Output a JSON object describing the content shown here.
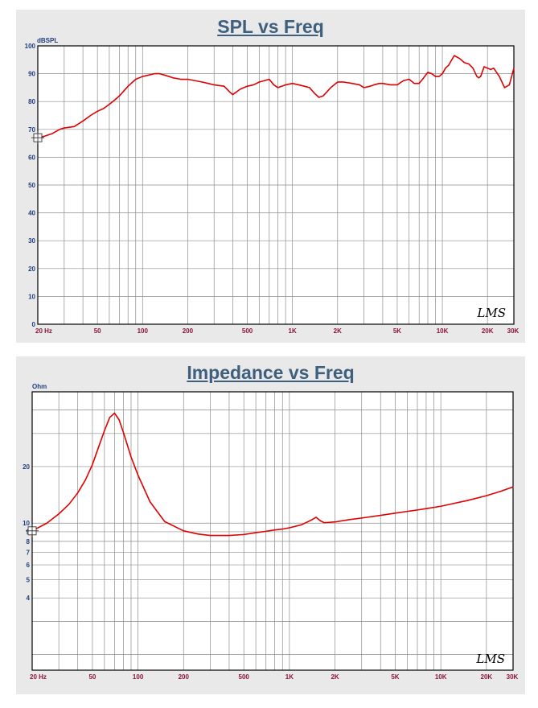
{
  "chart_data": [
    {
      "type": "line",
      "title": "SPL vs Freq",
      "ylabel": "dBSPL",
      "xlabel": "",
      "x_scale": "log",
      "xlim": [
        20,
        30000
      ],
      "ylim": [
        0,
        100
      ],
      "grid": true,
      "x_ticks": [
        {
          "v": 20,
          "label": "20  Hz"
        },
        {
          "v": 50,
          "label": "50"
        },
        {
          "v": 100,
          "label": "100"
        },
        {
          "v": 200,
          "label": "200"
        },
        {
          "v": 500,
          "label": "500"
        },
        {
          "v": 1000,
          "label": "1K"
        },
        {
          "v": 2000,
          "label": "2K"
        },
        {
          "v": 5000,
          "label": "5K"
        },
        {
          "v": 10000,
          "label": "10K"
        },
        {
          "v": 20000,
          "label": "20K"
        },
        {
          "v": 30000,
          "label": "30K"
        }
      ],
      "y_ticks": [
        {
          "v": 0,
          "label": "0"
        },
        {
          "v": 10,
          "label": "10"
        },
        {
          "v": 20,
          "label": "20"
        },
        {
          "v": 30,
          "label": "30"
        },
        {
          "v": 40,
          "label": "40"
        },
        {
          "v": 50,
          "label": "50"
        },
        {
          "v": 60,
          "label": "60"
        },
        {
          "v": 70,
          "label": "70"
        },
        {
          "v": 80,
          "label": "80"
        },
        {
          "v": 90,
          "label": "90"
        },
        {
          "v": 100,
          "label": "100"
        }
      ],
      "series": [
        {
          "color": "#e00000",
          "x": [
            20,
            22,
            25,
            28,
            30,
            35,
            40,
            45,
            50,
            55,
            60,
            65,
            70,
            80,
            90,
            100,
            110,
            120,
            130,
            140,
            150,
            160,
            180,
            200,
            250,
            300,
            350,
            380,
            400,
            450,
            500,
            550,
            600,
            650,
            700,
            750,
            800,
            850,
            900,
            1000,
            1100,
            1200,
            1300,
            1400,
            1500,
            1600,
            1700,
            1800,
            2000,
            2200,
            2500,
            2800,
            3000,
            3300,
            3500,
            3800,
            4000,
            4500,
            5000,
            5500,
            6000,
            6500,
            7000,
            7500,
            8000,
            8500,
            9000,
            9500,
            10000,
            10500,
            11000,
            12000,
            13000,
            14000,
            15000,
            16000,
            17000,
            17500,
            18000,
            19000,
            20000,
            21000,
            22000,
            24000,
            26000,
            28000,
            30000
          ],
          "y": [
            67,
            67.5,
            68.5,
            70,
            70.5,
            71,
            73,
            75,
            76.5,
            77.5,
            79,
            80.5,
            82,
            85.5,
            88,
            89,
            89.5,
            90,
            90,
            89.5,
            89,
            88.5,
            88,
            88,
            87,
            86,
            85.5,
            83.5,
            82.5,
            84.5,
            85.5,
            86,
            87,
            87.5,
            88,
            86,
            85,
            85.5,
            86,
            86.5,
            86,
            85.5,
            85,
            83,
            81.5,
            82,
            83.5,
            85,
            87,
            87,
            86.5,
            86,
            85,
            85.5,
            86,
            86.5,
            86.5,
            86,
            86,
            87.5,
            88,
            86.5,
            86.5,
            88.5,
            90.5,
            90,
            89,
            89,
            90,
            92,
            93,
            96.5,
            95.5,
            94,
            93.5,
            92,
            89,
            88.5,
            89,
            92.5,
            92,
            91.5,
            92,
            89,
            85,
            86,
            92
          ]
        }
      ]
    },
    {
      "type": "line",
      "title": "Impedance vs Freq",
      "ylabel": "Ohm",
      "xlabel": "",
      "x_scale": "log",
      "y_scale": "log",
      "xlim": [
        20,
        30000
      ],
      "ylim": [
        1.65,
        50
      ],
      "grid": true,
      "x_ticks": [
        {
          "v": 20,
          "label": "20  Hz"
        },
        {
          "v": 50,
          "label": "50"
        },
        {
          "v": 100,
          "label": "100"
        },
        {
          "v": 200,
          "label": "200"
        },
        {
          "v": 500,
          "label": "500"
        },
        {
          "v": 1000,
          "label": "1K"
        },
        {
          "v": 2000,
          "label": "2K"
        },
        {
          "v": 5000,
          "label": "5K"
        },
        {
          "v": 10000,
          "label": "10K"
        },
        {
          "v": 20000,
          "label": "20K"
        },
        {
          "v": 30000,
          "label": "30K"
        }
      ],
      "y_ticks": [
        {
          "v": 4,
          "label": "4"
        },
        {
          "v": 5,
          "label": "5"
        },
        {
          "v": 6,
          "label": "6"
        },
        {
          "v": 7,
          "label": "7"
        },
        {
          "v": 8,
          "label": "8"
        },
        {
          "v": 9,
          "label": "9"
        },
        {
          "v": 10,
          "label": "10"
        },
        {
          "v": 20,
          "label": "20"
        }
      ],
      "series": [
        {
          "color": "#e00000",
          "x": [
            20,
            25,
            30,
            35,
            40,
            45,
            50,
            55,
            60,
            65,
            70,
            75,
            80,
            90,
            100,
            120,
            150,
            200,
            250,
            300,
            400,
            500,
            600,
            700,
            800,
            900,
            1000,
            1200,
            1400,
            1500,
            1600,
            1700,
            2000,
            2500,
            3000,
            4000,
            5000,
            6000,
            7000,
            8000,
            10000,
            12000,
            15000,
            20000,
            25000,
            30000
          ],
          "y": [
            9.1,
            10,
            11.2,
            12.6,
            14.5,
            17,
            20.5,
            25.5,
            31,
            36.5,
            38.5,
            35.5,
            30.5,
            22.5,
            18,
            13,
            10.2,
            9.1,
            8.75,
            8.6,
            8.6,
            8.7,
            8.9,
            9.05,
            9.2,
            9.3,
            9.45,
            9.8,
            10.4,
            10.75,
            10.3,
            10.05,
            10.15,
            10.45,
            10.65,
            11,
            11.3,
            11.55,
            11.75,
            11.95,
            12.3,
            12.7,
            13.2,
            14,
            14.8,
            15.6
          ]
        }
      ]
    }
  ],
  "logo": "LMS"
}
